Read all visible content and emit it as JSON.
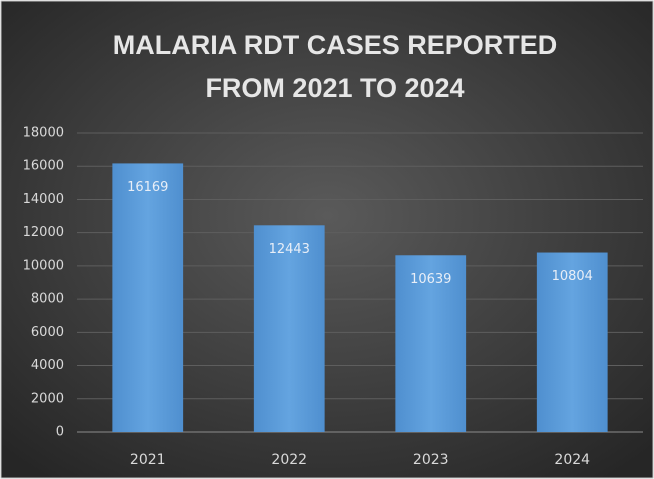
{
  "chart_data": {
    "type": "bar",
    "title": [
      "MALARIA RDT CASES REPORTED",
      "FROM 2021 TO 2024"
    ],
    "categories": [
      "2021",
      "2022",
      "2023",
      "2024"
    ],
    "values": [
      16169,
      12443,
      10639,
      10804
    ],
    "color": "#5b9bd5",
    "ylim": [
      0,
      18000
    ],
    "yticks": [
      0,
      2000,
      4000,
      6000,
      8000,
      10000,
      12000,
      14000,
      16000,
      18000
    ],
    "grid": true
  }
}
